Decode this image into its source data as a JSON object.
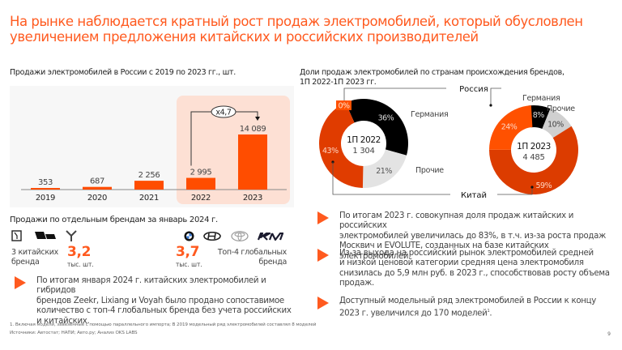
{
  "title": "На рынке наблюдается кратный рост продаж электромобилей, который обусловлен увеличением предложения китайских и российских производителей",
  "colors": {
    "accent": "#ff5a1f",
    "bar": "#ff4d00",
    "highlight_bg": "#fde0d4",
    "panel_bg": "#f7f7f7",
    "china_2022": "#e03c00",
    "china_2023": "#dc3c00",
    "russia": "#ff5100",
    "germany": "#000000",
    "others_2022": "#e3e3e3",
    "others_2023": "#d0d0d0"
  },
  "chart_data": [
    {
      "type": "bar",
      "title": "Продажи электромобилей в России с 2019 по 2023 гг., шт.",
      "categories": [
        "2019",
        "2020",
        "2021",
        "2022",
        "2023"
      ],
      "values": [
        353,
        687,
        2256,
        2995,
        14089
      ],
      "value_labels": [
        "353",
        "687",
        "2 256",
        "2 995",
        "14 089"
      ],
      "highlighted_categories": [
        "2022",
        "2023"
      ],
      "annotation": {
        "label": "x4,7",
        "from": "2022",
        "to": "2023"
      },
      "xlabel": "",
      "ylabel": "",
      "ylim": [
        0,
        16000
      ],
      "grid": false
    },
    {
      "type": "pie",
      "title": "Доли продаж электромобилей по странам происхождения брендов, 1П 2022-1П 2023 гг.",
      "donuts": [
        {
          "center_title": "1П 2022",
          "center_value": "1 304",
          "slices": [
            {
              "name": "Россия",
              "value": 0,
              "label": "0%"
            },
            {
              "name": "Германия",
              "value": 36,
              "label": "36%"
            },
            {
              "name": "Прочие",
              "value": 21,
              "label": "21%"
            },
            {
              "name": "Китай",
              "value": 43,
              "label": "43%"
            }
          ]
        },
        {
          "center_title": "1П 2023",
          "center_value": "4 485",
          "slices": [
            {
              "name": "Германия",
              "value": 8,
              "label": "8%"
            },
            {
              "name": "Прочие",
              "value": 10,
              "label": "10%"
            },
            {
              "name": "Китай",
              "value": 59,
              "label": "59%"
            },
            {
              "name": "Россия",
              "value": 24,
              "label": "24%"
            }
          ]
        }
      ],
      "legend": {
        "russia": "Россия",
        "china": "Китай",
        "germany": "Германия",
        "others": "Прочие"
      }
    }
  ],
  "brands": {
    "section_title": "Продажи по отдельным брендам за январь 2024 г.",
    "chinese": {
      "logos": [
        "zeekr-icon",
        "lixiang-icon",
        "voyah-icon"
      ],
      "label": "3 китайских бренда",
      "label_line1": "3 китайских",
      "label_line2": "бренда",
      "value": "3,2",
      "unit": "тыс. шт."
    },
    "global": {
      "logos": [
        "bmw-icon",
        "hyundai-icon",
        "toyota-icon",
        "kia-icon"
      ],
      "label_line1": "Топ-4 глобальных",
      "label_line2": "бренда",
      "value": "3,7",
      "unit": "тыс. шт."
    }
  },
  "left_bullet": "По итогам января 2024 г. китайских электромобилей и гибридов брендов Zeekr, Lixiang и Voyah было продано сопоставимое количество с топ-4 глобальных бренда без учета российских и китайских.",
  "left_bullet_lines": [
    "По итогам января 2024 г. китайских электромобилей и гибридов",
    "брендов Zeekr, Lixiang и Voyah было продано сопоставимое",
    "количество с топ-4 глобальных бренда без учета российских",
    "и китайских."
  ],
  "right_bullets": [
    {
      "lines": [
        "По итогам 2023 г. совокупная доля продаж китайских и российских",
        "электромобилей увеличилась до 83%, в т.ч. из-за роста продаж",
        "Москвич и EVOLUTE, созданных на базе китайских электромобилей."
      ]
    },
    {
      "lines": [
        "Из-за выхода на российский рынок электромобилей средней",
        "и низкой ценовой категории средняя цена электромобиля",
        "снизилась до 5,9 млн руб. в 2023 г., способствовав росту объема",
        "продаж."
      ]
    },
    {
      "lines": [
        "Доступный модельный ряд электромобилей в России к концу",
        "2023 г. увеличился до 170 моделей"
      ],
      "footnote_ref": "1",
      "tail": "."
    }
  ],
  "footnotes": {
    "note1": "1. Включая модели, завезенные с помощью параллельного импорта; В 2019 модельный ряд электромобилей составлял 8 моделей",
    "sources": "Источники: Автостат; НАПИ; Авто.ру; Анализ OKS LABS"
  },
  "page_number": "9"
}
